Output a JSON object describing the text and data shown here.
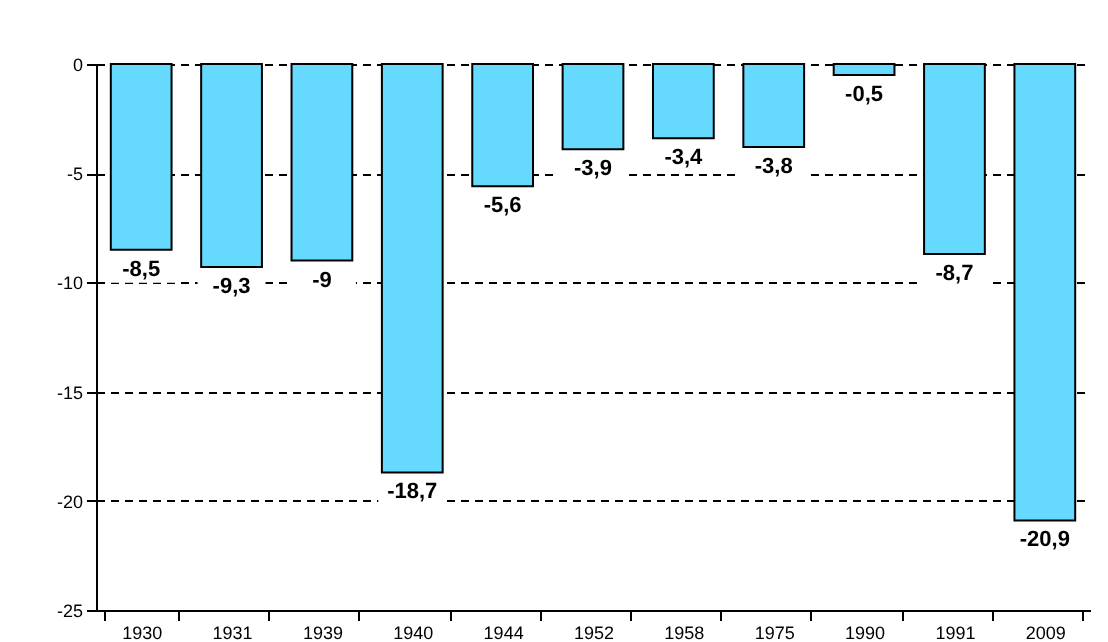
{
  "chart_data": {
    "type": "bar",
    "categories": [
      "1930",
      "1931",
      "1939",
      "1940",
      "1944",
      "1952",
      "1958",
      "1975",
      "1990",
      "1991",
      "2009"
    ],
    "values": [
      -8.5,
      -9.3,
      -9,
      -18.7,
      -5.6,
      -3.9,
      -3.4,
      -3.8,
      -0.5,
      -8.7,
      -20.9
    ],
    "value_labels": [
      "-8,5",
      "-9,3",
      "-9",
      "-18,7",
      "-5,6",
      "-3,9",
      "-3,4",
      "-3,8",
      "-0,5",
      "-8,7",
      "-20,9"
    ],
    "color": "#66d9ff",
    "ylim": [
      -25,
      0
    ],
    "yticks": [
      -25,
      -20,
      -15,
      -10,
      -5,
      0
    ],
    "grid": "y"
  }
}
